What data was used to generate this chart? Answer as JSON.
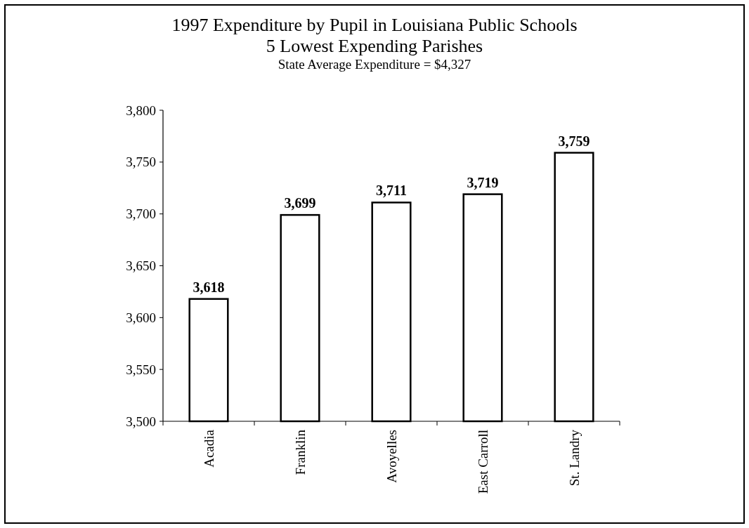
{
  "chart_data": {
    "type": "bar",
    "title": "1997 Expenditure by Pupil in Louisiana Public Schools",
    "subtitle": "5 Lowest Expending Parishes",
    "annotations": [
      "State Average Expenditure = $4,327"
    ],
    "categories": [
      "Acadia",
      "Franklin",
      "Avoyelles",
      "East Carroll",
      "St. Landry"
    ],
    "values": [
      3618,
      3699,
      3711,
      3719,
      3759
    ],
    "color": "#ffffff",
    "value_labels": [
      "3,618",
      "3,699",
      "3,711",
      "3,719",
      "3,759"
    ],
    "ylim": [
      3500,
      3800
    ],
    "yticks": [
      {
        "value": 3500,
        "label": "3,500"
      },
      {
        "value": 3550,
        "label": "3,550"
      },
      {
        "value": 3600,
        "label": "3,600"
      },
      {
        "value": 3650,
        "label": "3,650"
      },
      {
        "value": 3700,
        "label": "3,700"
      },
      {
        "value": 3750,
        "label": "3,750"
      },
      {
        "value": 3800,
        "label": "3,800"
      }
    ]
  }
}
